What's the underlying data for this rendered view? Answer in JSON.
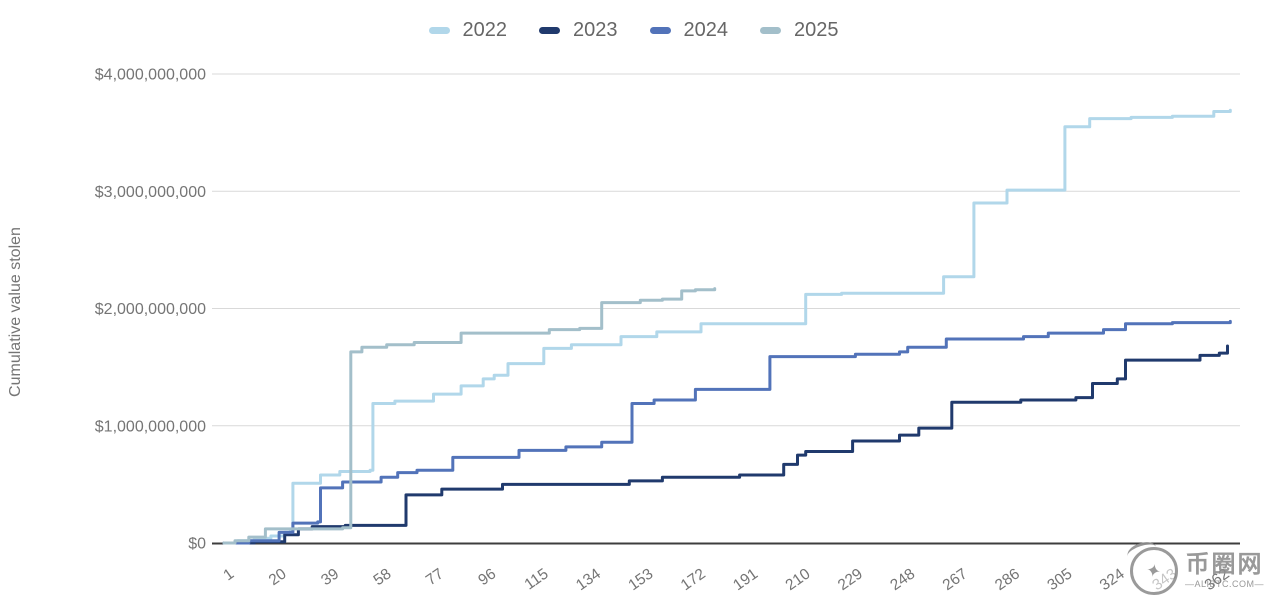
{
  "chart_data": {
    "type": "line",
    "step": true,
    "title": "",
    "xlabel": "",
    "ylabel": "Cumulative value stolen",
    "value_unit": "USD billions",
    "x_range": [
      1,
      366
    ],
    "y_range_billions": [
      0,
      4
    ],
    "grid": "horizontal",
    "legend_position": "top",
    "x_ticks": [
      1,
      20,
      39,
      58,
      77,
      96,
      115,
      134,
      153,
      172,
      191,
      210,
      229,
      248,
      267,
      286,
      305,
      324,
      343,
      362
    ],
    "y_ticks": [
      {
        "value": 0,
        "label": "$0"
      },
      {
        "value": 1,
        "label": "$1,000,000,000"
      },
      {
        "value": 2,
        "label": "$2,000,000,000"
      },
      {
        "value": 3,
        "label": "$3,000,000,000"
      },
      {
        "value": 4,
        "label": "$4,000,000,000"
      }
    ],
    "series": [
      {
        "name": "2022",
        "color": "#b1d7ea",
        "points": [
          [
            1,
            0
          ],
          [
            6,
            0.02
          ],
          [
            12,
            0.04
          ],
          [
            18,
            0.06
          ],
          [
            23,
            0.09
          ],
          [
            25,
            0.1
          ],
          [
            26,
            0.51
          ],
          [
            36,
            0.58
          ],
          [
            43,
            0.61
          ],
          [
            54,
            0.62
          ],
          [
            55,
            1.19
          ],
          [
            63,
            1.21
          ],
          [
            77,
            1.27
          ],
          [
            87,
            1.34
          ],
          [
            95,
            1.4
          ],
          [
            99,
            1.43
          ],
          [
            104,
            1.53
          ],
          [
            117,
            1.66
          ],
          [
            127,
            1.69
          ],
          [
            145,
            1.76
          ],
          [
            158,
            1.8
          ],
          [
            174,
            1.87
          ],
          [
            212,
            2.12
          ],
          [
            225,
            2.13
          ],
          [
            262,
            2.27
          ],
          [
            273,
            2.9
          ],
          [
            285,
            3.01
          ],
          [
            306,
            3.55
          ],
          [
            315,
            3.62
          ],
          [
            330,
            3.63
          ],
          [
            345,
            3.64
          ],
          [
            360,
            3.68
          ],
          [
            366,
            3.69
          ]
        ]
      },
      {
        "name": "2023",
        "color": "#203a6d",
        "points": [
          [
            1,
            0
          ],
          [
            12,
            0.01
          ],
          [
            23,
            0.07
          ],
          [
            28,
            0.12
          ],
          [
            33,
            0.14
          ],
          [
            45,
            0.15
          ],
          [
            67,
            0.41
          ],
          [
            80,
            0.46
          ],
          [
            102,
            0.5
          ],
          [
            148,
            0.53
          ],
          [
            160,
            0.56
          ],
          [
            188,
            0.58
          ],
          [
            204,
            0.67
          ],
          [
            209,
            0.75
          ],
          [
            212,
            0.78
          ],
          [
            229,
            0.87
          ],
          [
            246,
            0.92
          ],
          [
            253,
            0.98
          ],
          [
            265,
            1.2
          ],
          [
            290,
            1.22
          ],
          [
            310,
            1.24
          ],
          [
            316,
            1.36
          ],
          [
            325,
            1.4
          ],
          [
            328,
            1.56
          ],
          [
            355,
            1.6
          ],
          [
            362,
            1.62
          ],
          [
            365,
            1.68
          ]
        ]
      },
      {
        "name": "2024",
        "color": "#5273b9",
        "points": [
          [
            1,
            0
          ],
          [
            10,
            0.02
          ],
          [
            21,
            0.09
          ],
          [
            26,
            0.17
          ],
          [
            35,
            0.18
          ],
          [
            36,
            0.47
          ],
          [
            44,
            0.52
          ],
          [
            58,
            0.56
          ],
          [
            64,
            0.6
          ],
          [
            71,
            0.62
          ],
          [
            84,
            0.73
          ],
          [
            108,
            0.79
          ],
          [
            125,
            0.82
          ],
          [
            138,
            0.86
          ],
          [
            149,
            1.19
          ],
          [
            157,
            1.22
          ],
          [
            172,
            1.31
          ],
          [
            199,
            1.59
          ],
          [
            230,
            1.61
          ],
          [
            246,
            1.63
          ],
          [
            249,
            1.67
          ],
          [
            263,
            1.74
          ],
          [
            291,
            1.76
          ],
          [
            300,
            1.79
          ],
          [
            320,
            1.82
          ],
          [
            328,
            1.87
          ],
          [
            345,
            1.88
          ],
          [
            366,
            1.89
          ]
        ]
      },
      {
        "name": "2025",
        "color": "#a3bfca",
        "points": [
          [
            1,
            0
          ],
          [
            5,
            0.02
          ],
          [
            10,
            0.05
          ],
          [
            16,
            0.12
          ],
          [
            44,
            0.13
          ],
          [
            47,
            1.63
          ],
          [
            51,
            1.67
          ],
          [
            60,
            1.69
          ],
          [
            70,
            1.71
          ],
          [
            87,
            1.79
          ],
          [
            119,
            1.82
          ],
          [
            130,
            1.83
          ],
          [
            138,
            2.05
          ],
          [
            152,
            2.07
          ],
          [
            160,
            2.08
          ],
          [
            167,
            2.15
          ],
          [
            172,
            2.16
          ],
          [
            179,
            2.17
          ]
        ]
      }
    ]
  },
  "colors": {
    "gridline": "#d9d9d9",
    "axis_line": "#3d3d3d",
    "tick_label": "#757575",
    "legend_text": "#666666"
  },
  "watermark": {
    "site_name": "币圈网",
    "domain_line": "—ALIBTC.COM—"
  }
}
